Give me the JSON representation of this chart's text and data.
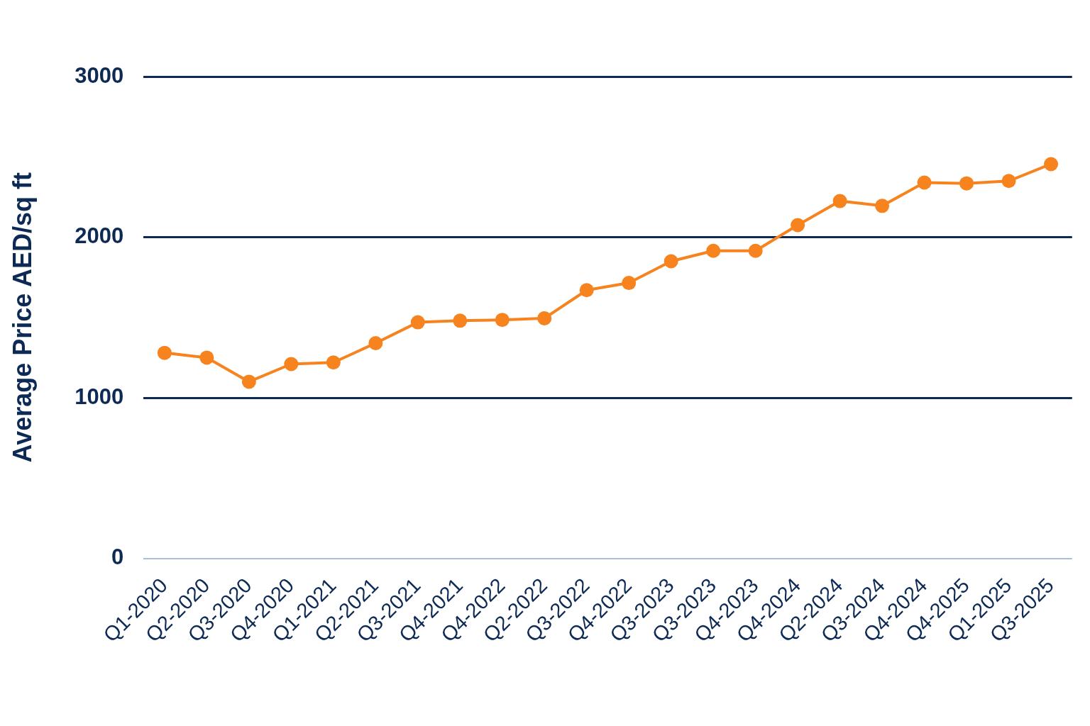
{
  "chart_data": {
    "type": "line",
    "ylabel": "Average Price AED/sq ft",
    "categories": [
      "Q1-2020",
      "Q2-2020",
      "Q3-2020",
      "Q4-2020",
      "Q1-2021",
      "Q2-2021",
      "Q3-2021",
      "Q4-2021",
      "Q4-2022",
      "Q2-2022",
      "Q3-2022",
      "Q4-2022",
      "Q3-2023",
      "Q3-2023",
      "Q4-2023",
      "Q4-2024",
      "Q2-2024",
      "Q3-2024",
      "Q4-2024",
      "Q4-2025",
      "Q1-2025",
      "Q3-2025"
    ],
    "series": [
      {
        "color": "#f7831e",
        "values": [
          1280,
          1250,
          1100,
          1210,
          1220,
          1340,
          1470,
          1480,
          1485,
          1495,
          1670,
          1715,
          1850,
          1915,
          1915,
          2075,
          2225,
          2195,
          2340,
          2335,
          2350,
          2455
        ]
      }
    ],
    "ylim": [
      0,
      3000
    ],
    "yticks": [
      0,
      1000,
      2000,
      3000
    ],
    "grid": "y",
    "legend": false,
    "marker": "circle",
    "line_style": "solid"
  }
}
